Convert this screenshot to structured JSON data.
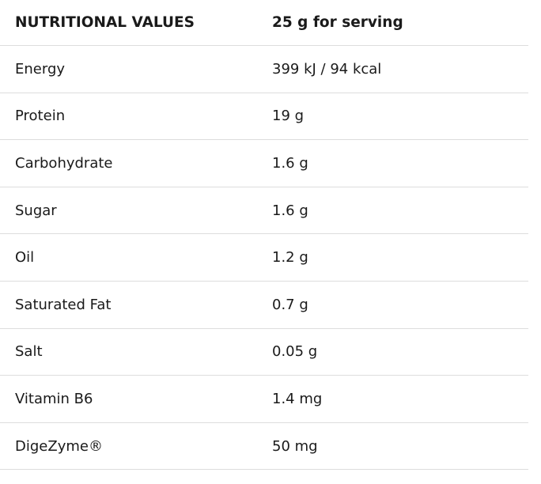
{
  "table": {
    "header": {
      "label": "NUTRITIONAL VALUES",
      "value": "25 g for serving"
    },
    "rows": [
      {
        "label": "Energy",
        "value": "399 kJ / 94 kcal"
      },
      {
        "label": "Protein",
        "value": "19 g"
      },
      {
        "label": "Carbohydrate",
        "value": "1.6 g"
      },
      {
        "label": "Sugar",
        "value": "1.6 g"
      },
      {
        "label": "Oil",
        "value": "1.2 g"
      },
      {
        "label": "Saturated Fat",
        "value": "0.7 g"
      },
      {
        "label": "Salt",
        "value": "0.05 g"
      },
      {
        "label": "Vitamin B6",
        "value": "1.4 mg"
      },
      {
        "label": "DigeZyme®",
        "value": "50 mg"
      }
    ]
  },
  "colors": {
    "text": "#1a1a1a",
    "divider": "#dddddd",
    "background": "#ffffff"
  }
}
